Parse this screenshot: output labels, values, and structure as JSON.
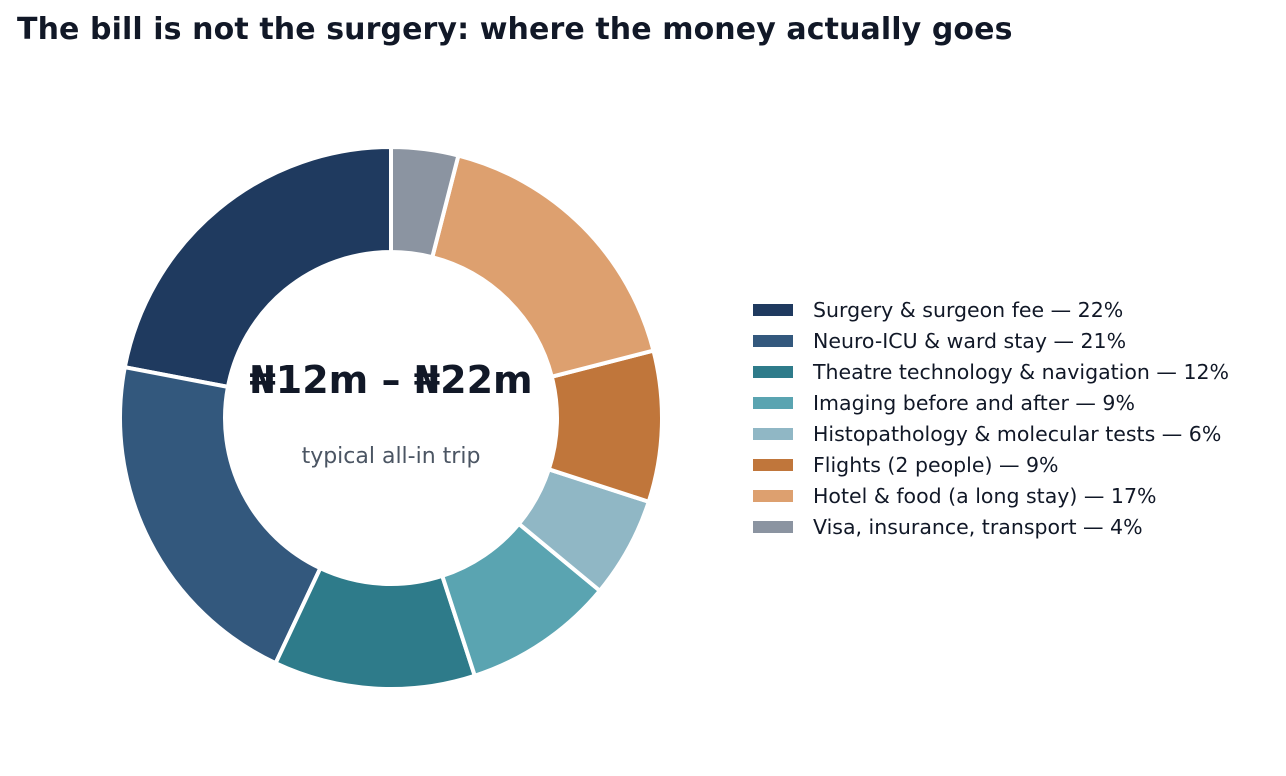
{
  "chart_data": {
    "type": "pie",
    "variant": "donut",
    "title": "The bill is not the surgery: where the money actually goes",
    "center_value": "₦12m – ₦22m",
    "center_caption": "typical all-in trip",
    "legend_position": "right",
    "slices": [
      {
        "label": "Surgery & surgeon fee — 22%",
        "value": 22,
        "color": "#1f3a5f"
      },
      {
        "label": "Neuro-ICU & ward stay — 21%",
        "value": 21,
        "color": "#33587d"
      },
      {
        "label": "Theatre technology & navigation — 12%",
        "value": 12,
        "color": "#2e7b8a"
      },
      {
        "label": "Imaging before and after — 9%",
        "value": 9,
        "color": "#5aa4b1"
      },
      {
        "label": "Histopathology & molecular tests — 6%",
        "value": 6,
        "color": "#90b7c5"
      },
      {
        "label": "Flights (2 people) — 9%",
        "value": 9,
        "color": "#c0763b"
      },
      {
        "label": "Hotel & food (a long stay) — 17%",
        "value": 17,
        "color": "#dda06f"
      },
      {
        "label": "Visa, insurance, transport — 4%",
        "value": 4,
        "color": "#8b94a1"
      }
    ]
  }
}
